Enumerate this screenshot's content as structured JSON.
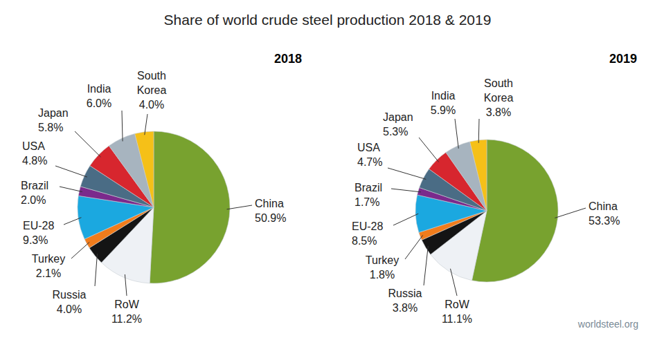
{
  "title": "Share of world crude steel production 2018 & 2019",
  "source": "worldsteel.org",
  "chart_data": [
    {
      "type": "pie",
      "title": "2018",
      "categories": [
        "China",
        "RoW",
        "Russia",
        "Turkey",
        "EU-28",
        "Brazil",
        "USA",
        "Japan",
        "India",
        "South Korea"
      ],
      "values": [
        50.9,
        11.2,
        4.0,
        2.1,
        9.3,
        2.0,
        4.8,
        5.8,
        6.0,
        4.0
      ],
      "value_labels": [
        "50.9%",
        "11.2%",
        "4.0%",
        "2.1%",
        "9.3%",
        "2.0%",
        "4.8%",
        "5.8%",
        "6.0%",
        "4.0%"
      ],
      "colors": [
        "#78a22f",
        "#eef1f5",
        "#141414",
        "#f07c1c",
        "#1ba8e0",
        "#7b2a8c",
        "#4a6c85",
        "#d7262e",
        "#a7b4bf",
        "#f5c018"
      ],
      "data_labels": true
    },
    {
      "type": "pie",
      "title": "2019",
      "categories": [
        "China",
        "RoW",
        "Russia",
        "Turkey",
        "EU-28",
        "Brazil",
        "USA",
        "Japan",
        "India",
        "South Korea"
      ],
      "values": [
        53.3,
        11.1,
        3.8,
        1.8,
        8.5,
        1.7,
        4.7,
        5.3,
        5.9,
        3.8
      ],
      "value_labels": [
        "53.3%",
        "11.1%",
        "3.8%",
        "1.8%",
        "8.5%",
        "1.7%",
        "4.7%",
        "5.3%",
        "5.9%",
        "3.8%"
      ],
      "colors": [
        "#78a22f",
        "#eef1f5",
        "#141414",
        "#f07c1c",
        "#1ba8e0",
        "#7b2a8c",
        "#4a6c85",
        "#d7262e",
        "#a7b4bf",
        "#f5c018"
      ],
      "data_labels": true
    }
  ]
}
